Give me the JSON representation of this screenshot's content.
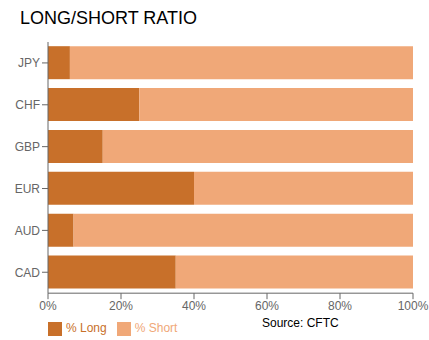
{
  "chart_data": {
    "type": "bar",
    "orientation": "horizontal",
    "stacked": true,
    "title": "LONG/SHORT RATIO",
    "categories": [
      "JPY",
      "CHF",
      "GBP",
      "EUR",
      "AUD",
      "CAD"
    ],
    "series": [
      {
        "name": "% Long",
        "color": "#C8702A",
        "values": [
          6,
          25,
          15,
          40,
          7,
          35
        ]
      },
      {
        "name": "% Short",
        "color": "#F0A878",
        "values": [
          94,
          75,
          85,
          60,
          93,
          65
        ]
      }
    ],
    "xlim": [
      0,
      100
    ],
    "xticks": [
      {
        "value": 0,
        "label": "0%"
      },
      {
        "value": 20,
        "label": "20%"
      },
      {
        "value": 40,
        "label": "40%"
      },
      {
        "value": 60,
        "label": "60%"
      },
      {
        "value": 80,
        "label": "80%"
      },
      {
        "value": 100,
        "label": "100%"
      }
    ],
    "grid": false,
    "legend": "lower left",
    "annotations": [
      "Source: CFTC"
    ]
  }
}
